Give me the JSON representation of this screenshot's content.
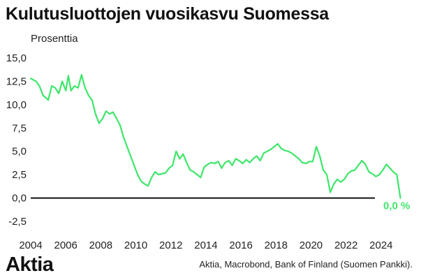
{
  "chart_data": {
    "type": "line",
    "title": "Kulutusluottojen vuosikasvu Suomessa",
    "ylabel": "Prosenttia",
    "xlabel": "",
    "ylim": [
      -2.5,
      15.0
    ],
    "yticks": [
      "-2,5",
      "0,0",
      "2,5",
      "5,0",
      "7,5",
      "10,0",
      "12,5",
      "15,0"
    ],
    "xlim": [
      2004,
      2025.6
    ],
    "xticks": [
      "2004",
      "2006",
      "2008",
      "2010",
      "2012",
      "2014",
      "2016",
      "2018",
      "2020",
      "2022",
      "2024"
    ],
    "grid": false,
    "legend": "none",
    "end_label": "0,0 %",
    "line_color": "#3ee66a",
    "series": [
      {
        "x": [
          2004.0,
          2004.3,
          2004.5,
          2004.7,
          2005.0,
          2005.2,
          2005.4,
          2005.6,
          2005.8,
          2006.0,
          2006.15,
          2006.3,
          2006.5,
          2006.7,
          2006.9,
          2007.1,
          2007.3,
          2007.5,
          2007.7,
          2007.9,
          2008.1,
          2008.3,
          2008.5,
          2008.7,
          2008.9,
          2009.1,
          2009.3,
          2009.5,
          2009.7,
          2009.9,
          2010.1,
          2010.3,
          2010.5,
          2010.7,
          2010.9,
          2011.1,
          2011.3,
          2011.5,
          2011.7,
          2011.9,
          2012.1,
          2012.3,
          2012.5,
          2012.7,
          2012.9,
          2013.1,
          2013.3,
          2013.5,
          2013.7,
          2013.9,
          2014.1,
          2014.3,
          2014.5,
          2014.7,
          2014.9,
          2015.1,
          2015.3,
          2015.5,
          2015.7,
          2015.9,
          2016.1,
          2016.3,
          2016.5,
          2016.7,
          2016.9,
          2017.1,
          2017.3,
          2017.5,
          2017.7,
          2017.9,
          2018.1,
          2018.3,
          2018.5,
          2018.7,
          2018.9,
          2019.1,
          2019.3,
          2019.5,
          2019.7,
          2019.9,
          2020.1,
          2020.3,
          2020.5,
          2020.7,
          2020.9,
          2021.1,
          2021.3,
          2021.5,
          2021.7,
          2021.9,
          2022.1,
          2022.3,
          2022.5,
          2022.7,
          2022.9,
          2023.1,
          2023.3,
          2023.5,
          2023.7,
          2023.9,
          2024.1,
          2024.3,
          2024.5,
          2024.7,
          2024.9,
          2025.1
        ],
        "y": [
          12.8,
          12.5,
          12.0,
          11.0,
          10.5,
          12.0,
          11.8,
          11.2,
          12.5,
          11.5,
          13.1,
          11.5,
          12.0,
          11.8,
          13.2,
          11.8,
          11.0,
          10.5,
          9.0,
          8.0,
          8.5,
          9.3,
          9.0,
          9.2,
          8.5,
          7.8,
          6.5,
          5.5,
          4.5,
          3.5,
          2.5,
          1.8,
          1.5,
          1.3,
          2.2,
          2.8,
          2.5,
          2.6,
          2.7,
          3.2,
          3.5,
          5.0,
          4.2,
          4.7,
          3.8,
          3.0,
          2.8,
          2.5,
          2.2,
          3.3,
          3.6,
          3.8,
          3.7,
          3.9,
          3.2,
          3.8,
          4.0,
          3.5,
          4.2,
          4.0,
          3.7,
          4.1,
          3.8,
          4.2,
          4.5,
          4.0,
          4.8,
          5.0,
          5.2,
          5.5,
          5.8,
          5.3,
          5.1,
          5.0,
          4.8,
          4.5,
          4.2,
          3.8,
          3.7,
          3.9,
          3.9,
          5.5,
          4.5,
          3.0,
          2.5,
          0.6,
          1.5,
          2.0,
          1.7,
          2.0,
          2.6,
          2.9,
          3.0,
          3.5,
          4.0,
          3.6,
          2.8,
          2.6,
          2.3,
          2.5,
          3.0,
          3.6,
          3.2,
          2.8,
          2.5,
          0.0
        ]
      }
    ]
  },
  "footer": {
    "logo": "Aktia",
    "source": "Aktia, Macrobond, Bank of Finland (Suomen Pankki)."
  }
}
